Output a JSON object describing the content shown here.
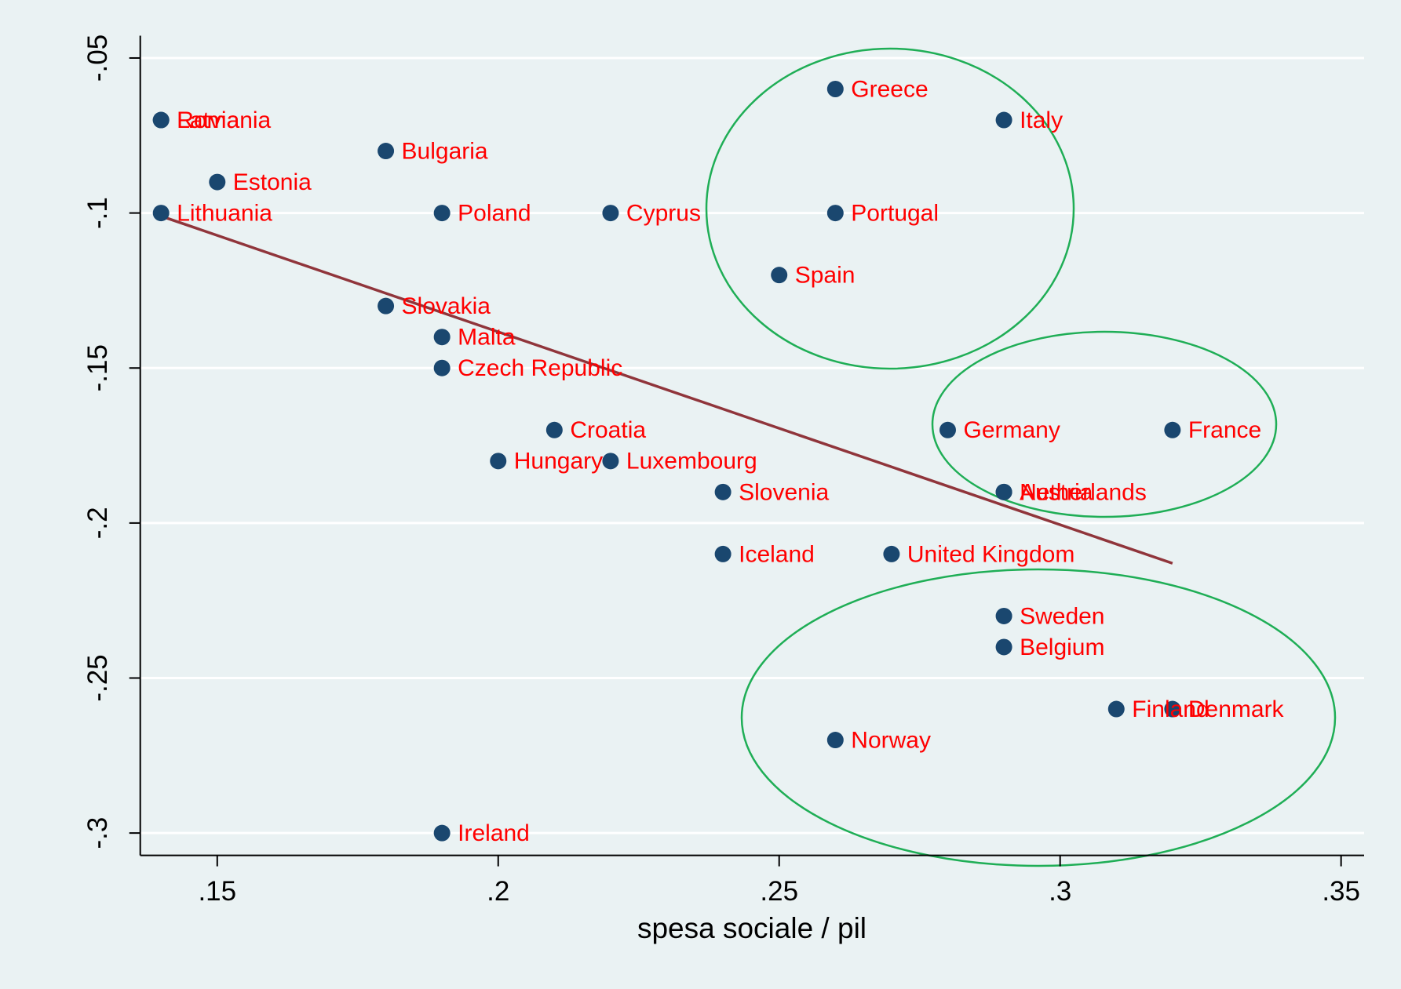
{
  "chart_data": {
    "type": "scatter",
    "x_label": "spesa sociale / pil",
    "xlim": [
      0.1363,
      0.3541
    ],
    "ylim": [
      -0.3072,
      -0.0428
    ],
    "xticks": [
      {
        "value": 0.15,
        "label": ".15"
      },
      {
        "value": 0.2,
        "label": ".2"
      },
      {
        "value": 0.25,
        "label": ".25"
      },
      {
        "value": 0.3,
        "label": ".3"
      },
      {
        "value": 0.35,
        "label": ".35"
      }
    ],
    "yticks": [
      {
        "value": -0.05,
        "label": "-.05"
      },
      {
        "value": -0.1,
        "label": "-.1"
      },
      {
        "value": -0.15,
        "label": "-.15"
      },
      {
        "value": -0.2,
        "label": "-.2"
      },
      {
        "value": -0.25,
        "label": "-.25"
      },
      {
        "value": -0.3,
        "label": "-.3"
      }
    ],
    "grid": true,
    "color": "#1a476f",
    "label_color": "#ff0000",
    "labels": [
      "Romania",
      "Latvia",
      "Bulgaria",
      "Estonia",
      "Lithuania",
      "Poland",
      "Cyprus",
      "Greece",
      "Italy",
      "Portugal",
      "Spain",
      "Slovakia",
      "Malta",
      "Czech Republic",
      "Croatia",
      "Hungary",
      "Luxembourg",
      "Slovenia",
      "Germany",
      "France",
      "Austria",
      "Netherlands",
      "Iceland",
      "United Kingdom",
      "Sweden",
      "Belgium",
      "Finland",
      "Denmark",
      "Norway",
      "Ireland"
    ],
    "x": [
      0.14,
      0.14,
      0.18,
      0.15,
      0.14,
      0.19,
      0.22,
      0.26,
      0.29,
      0.26,
      0.25,
      0.18,
      0.19,
      0.19,
      0.21,
      0.2,
      0.22,
      0.24,
      0.28,
      0.32,
      0.29,
      0.29,
      0.24,
      0.27,
      0.29,
      0.29,
      0.31,
      0.32,
      0.26,
      0.19
    ],
    "values": [
      -0.07,
      -0.07,
      -0.08,
      -0.09,
      -0.1,
      -0.1,
      -0.1,
      -0.06,
      -0.07,
      -0.1,
      -0.12,
      -0.13,
      -0.14,
      -0.15,
      -0.17,
      -0.18,
      -0.18,
      -0.19,
      -0.17,
      -0.17,
      -0.19,
      -0.19,
      -0.21,
      -0.21,
      -0.23,
      -0.24,
      -0.26,
      -0.26,
      -0.27,
      -0.3
    ],
    "fit_line": {
      "color": "#90353b",
      "x": [
        0.14,
        0.32
      ],
      "values": [
        -0.101,
        -0.213
      ]
    }
  }
}
